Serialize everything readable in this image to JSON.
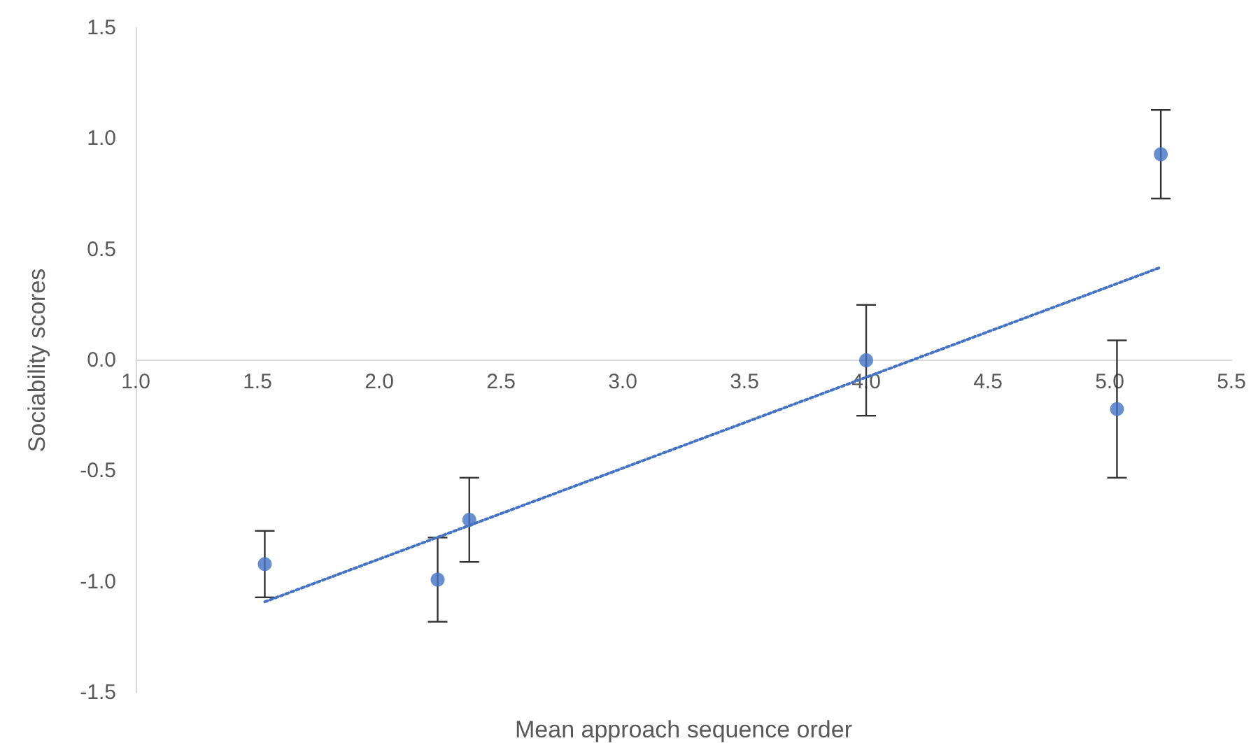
{
  "chart_data": {
    "type": "scatter",
    "xlabel": "Mean approach sequence order",
    "ylabel": "Sociability scores",
    "xlim": [
      1.0,
      5.5
    ],
    "xticks": [
      {
        "value": 1,
        "label": "1.0"
      },
      {
        "value": 1.5,
        "label": "1.5"
      },
      {
        "value": 2,
        "label": "2.0"
      },
      {
        "value": 2.5,
        "label": "2.5"
      },
      {
        "value": 3,
        "label": "3.0"
      },
      {
        "value": 3.5,
        "label": "3.5"
      },
      {
        "value": 4,
        "label": "4.0"
      },
      {
        "value": 4.5,
        "label": "4.5"
      },
      {
        "value": 5,
        "label": "5.0"
      },
      {
        "value": 5.5,
        "label": "5.5"
      }
    ],
    "ylim": [
      -1.5,
      1.5
    ],
    "yticks": [
      {
        "value": -1.5,
        "label": "-1.5"
      },
      {
        "value": -1,
        "label": "-1.0"
      },
      {
        "value": -0.5,
        "label": "-0.5"
      },
      {
        "value": 0,
        "label": "0.0"
      },
      {
        "value": 0.5,
        "label": "0.5"
      },
      {
        "value": 1,
        "label": "1.0"
      },
      {
        "value": 1.5,
        "label": "1.5"
      }
    ],
    "grid": false,
    "marker": "circle",
    "series": [
      {
        "color": "#4472c4",
        "x": [
          1.53,
          2.24,
          2.37,
          4.0,
          5.03,
          5.21
        ],
        "values": [
          -0.92,
          -0.99,
          -0.72,
          0.0,
          -0.22,
          0.93
        ],
        "errors": [
          0.15,
          0.19,
          0.19,
          0.25,
          0.31,
          0.2
        ]
      },
      {
        "type": "line",
        "color": "#4472c4",
        "line_style": "dotted",
        "marker": "none",
        "x": [
          1.53,
          5.21
        ],
        "values": [
          -1.09,
          0.42
        ]
      }
    ]
  }
}
